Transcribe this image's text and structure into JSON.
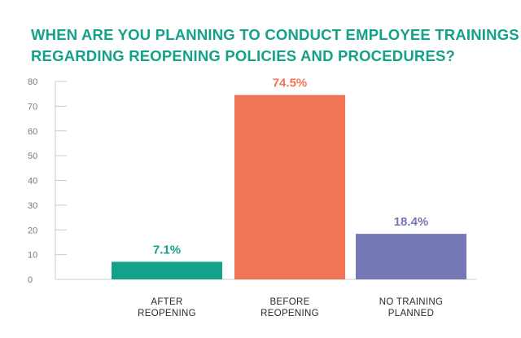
{
  "title_lines": [
    "WHEN ARE YOU PLANNING TO CONDUCT EMPLOYEE TRAININGS",
    "REGARDING REOPENING POLICIES AND PROCEDURES?"
  ],
  "colors": {
    "title": "#14a189",
    "axis": "#c9c9c9",
    "tick_text": "#7a7a7a",
    "category_text": "#2b2b2b"
  },
  "chart_data": {
    "type": "bar",
    "title": "WHEN ARE YOU PLANNING TO CONDUCT EMPLOYEE TRAININGS REGARDING REOPENING POLICIES AND PROCEDURES?",
    "categories": [
      [
        "AFTER",
        "REOPENING"
      ],
      [
        "BEFORE",
        "REOPENING"
      ],
      [
        "NO TRAINING",
        "PLANNED"
      ]
    ],
    "values": [
      7.1,
      74.5,
      18.4
    ],
    "data_labels": [
      "7.1%",
      "74.5%",
      "18.4%"
    ],
    "bar_colors": [
      "#14a189",
      "#f07556",
      "#7478b4"
    ],
    "ylim": [
      0,
      80
    ],
    "yticks": [
      0,
      10,
      20,
      30,
      40,
      50,
      60,
      70,
      80
    ],
    "xlabel": "",
    "ylabel": "",
    "grid": false,
    "legend": "none"
  }
}
